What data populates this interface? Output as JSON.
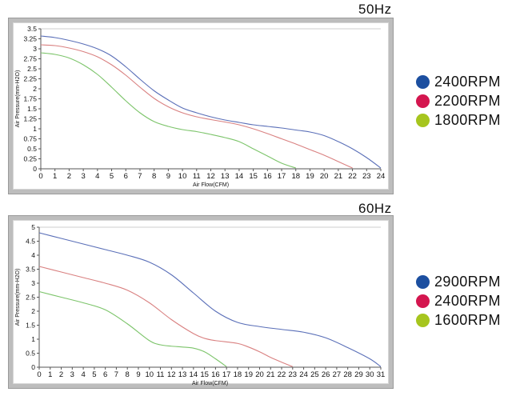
{
  "charts_meta": [
    {
      "heading": "50Hz"
    },
    {
      "heading": "60Hz"
    }
  ],
  "chart_data": [
    {
      "type": "line",
      "title": "50Hz",
      "xlabel": "Air Flow(CFM)",
      "ylabel": "Air Pressure(mm-H2O)",
      "xlim": [
        0,
        24
      ],
      "ylim": [
        0,
        3.5
      ],
      "xticks": [
        "0",
        "1",
        "2",
        "3",
        "4",
        "5",
        "6",
        "7",
        "8",
        "9",
        "10",
        "11",
        "12",
        "13",
        "14",
        "15",
        "16",
        "17",
        "18",
        "19",
        "20",
        "21",
        "22",
        "23",
        "24"
      ],
      "yticks": [
        "0",
        "0.25",
        "0.5",
        "0.75",
        "1",
        "1.25",
        "1.5",
        "1.75",
        "2",
        "2.25",
        "2.5",
        "2.75",
        "3",
        "3.25",
        "3.5"
      ],
      "grid": "top border line only",
      "legend_position": "right",
      "series": [
        {
          "name": "2400RPM",
          "color": "#1c4fa0",
          "line_color": "#5a6fb8",
          "points": [
            [
              0,
              3.32
            ],
            [
              1,
              3.28
            ],
            [
              2,
              3.21
            ],
            [
              3,
              3.12
            ],
            [
              4,
              3.0
            ],
            [
              5,
              2.82
            ],
            [
              6,
              2.55
            ],
            [
              7,
              2.24
            ],
            [
              8,
              1.95
            ],
            [
              9,
              1.72
            ],
            [
              10,
              1.52
            ],
            [
              11,
              1.4
            ],
            [
              12,
              1.3
            ],
            [
              13,
              1.22
            ],
            [
              14,
              1.16
            ],
            [
              15,
              1.1
            ],
            [
              16,
              1.06
            ],
            [
              17,
              1.02
            ],
            [
              18,
              0.97
            ],
            [
              19,
              0.92
            ],
            [
              20,
              0.83
            ],
            [
              21,
              0.68
            ],
            [
              22,
              0.5
            ],
            [
              23,
              0.28
            ],
            [
              24,
              0.02
            ]
          ]
        },
        {
          "name": "2200RPM",
          "color": "#d4164f",
          "line_color": "#d98080",
          "points": [
            [
              0,
              3.1
            ],
            [
              1,
              3.08
            ],
            [
              2,
              3.02
            ],
            [
              3,
              2.93
            ],
            [
              4,
              2.8
            ],
            [
              5,
              2.6
            ],
            [
              6,
              2.34
            ],
            [
              7,
              2.04
            ],
            [
              8,
              1.76
            ],
            [
              9,
              1.55
            ],
            [
              10,
              1.4
            ],
            [
              11,
              1.3
            ],
            [
              12,
              1.23
            ],
            [
              13,
              1.17
            ],
            [
              14,
              1.1
            ],
            [
              15,
              1.0
            ],
            [
              16,
              0.88
            ],
            [
              17,
              0.75
            ],
            [
              18,
              0.62
            ],
            [
              19,
              0.48
            ],
            [
              20,
              0.34
            ],
            [
              21,
              0.18
            ],
            [
              22,
              0.02
            ]
          ]
        },
        {
          "name": "1800RPM",
          "color": "#a6c51e",
          "line_color": "#7cc46a",
          "points": [
            [
              0,
              2.9
            ],
            [
              1,
              2.86
            ],
            [
              2,
              2.77
            ],
            [
              3,
              2.6
            ],
            [
              4,
              2.36
            ],
            [
              5,
              2.04
            ],
            [
              6,
              1.7
            ],
            [
              7,
              1.4
            ],
            [
              8,
              1.18
            ],
            [
              9,
              1.06
            ],
            [
              10,
              0.98
            ],
            [
              11,
              0.93
            ],
            [
              12,
              0.86
            ],
            [
              13,
              0.78
            ],
            [
              14,
              0.68
            ],
            [
              15,
              0.5
            ],
            [
              16,
              0.32
            ],
            [
              17,
              0.14
            ],
            [
              18,
              0.02
            ]
          ]
        }
      ]
    },
    {
      "type": "line",
      "title": "60Hz",
      "xlabel": "Air Flow(CFM)",
      "ylabel": "Air Pressure(mm-H2O)",
      "xlim": [
        0,
        31
      ],
      "ylim": [
        0,
        5
      ],
      "xticks": [
        "0",
        "1",
        "2",
        "3",
        "4",
        "5",
        "6",
        "7",
        "8",
        "9",
        "10",
        "11",
        "12",
        "13",
        "14",
        "15",
        "16",
        "17",
        "18",
        "19",
        "20",
        "21",
        "22",
        "23",
        "24",
        "25",
        "26",
        "27",
        "28",
        "29",
        "30",
        "31"
      ],
      "yticks": [
        "0",
        "0.5",
        "1",
        "1.5",
        "2",
        "2.5",
        "3",
        "3.5",
        "4",
        "4.5",
        "5"
      ],
      "grid": "top border line only",
      "legend_position": "right",
      "series": [
        {
          "name": "2900RPM",
          "color": "#1c4fa0",
          "line_color": "#5a6fb8",
          "points": [
            [
              0,
              4.8
            ],
            [
              2,
              4.6
            ],
            [
              4,
              4.4
            ],
            [
              6,
              4.2
            ],
            [
              8,
              4.0
            ],
            [
              10,
              3.75
            ],
            [
              12,
              3.3
            ],
            [
              14,
              2.65
            ],
            [
              16,
              2.0
            ],
            [
              18,
              1.6
            ],
            [
              20,
              1.45
            ],
            [
              22,
              1.35
            ],
            [
              24,
              1.25
            ],
            [
              26,
              1.05
            ],
            [
              28,
              0.7
            ],
            [
              30,
              0.3
            ],
            [
              31,
              0.02
            ]
          ]
        },
        {
          "name": "2400RPM",
          "color": "#d4164f",
          "line_color": "#d98080",
          "points": [
            [
              0,
              3.6
            ],
            [
              2,
              3.4
            ],
            [
              4,
              3.2
            ],
            [
              6,
              3.0
            ],
            [
              8,
              2.75
            ],
            [
              10,
              2.3
            ],
            [
              12,
              1.7
            ],
            [
              14,
              1.2
            ],
            [
              15,
              1.03
            ],
            [
              16,
              0.95
            ],
            [
              18,
              0.85
            ],
            [
              19,
              0.72
            ],
            [
              20,
              0.55
            ],
            [
              21,
              0.35
            ],
            [
              22,
              0.18
            ],
            [
              23,
              0.02
            ]
          ]
        },
        {
          "name": "1600RPM",
          "color": "#a6c51e",
          "line_color": "#7cc46a",
          "points": [
            [
              0,
              2.7
            ],
            [
              2,
              2.5
            ],
            [
              4,
              2.3
            ],
            [
              6,
              2.05
            ],
            [
              8,
              1.55
            ],
            [
              10,
              0.95
            ],
            [
              11,
              0.8
            ],
            [
              12,
              0.75
            ],
            [
              13,
              0.72
            ],
            [
              14,
              0.68
            ],
            [
              15,
              0.55
            ],
            [
              16,
              0.3
            ],
            [
              17,
              0.02
            ]
          ]
        }
      ]
    }
  ]
}
